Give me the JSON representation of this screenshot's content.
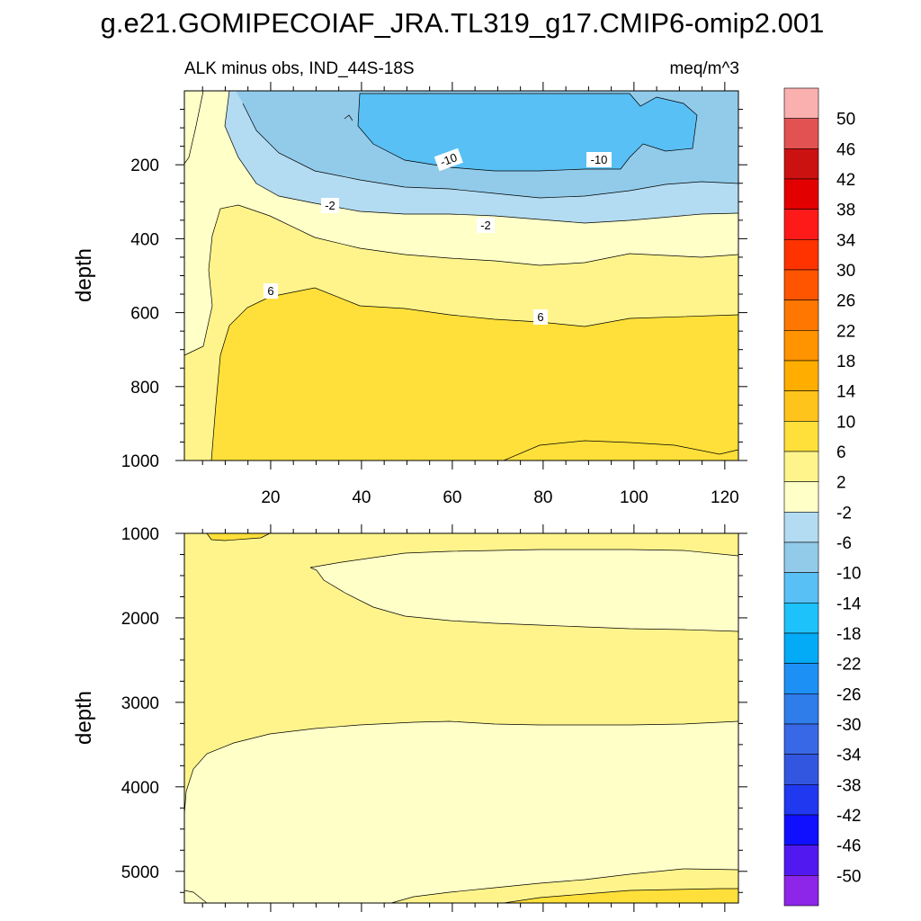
{
  "title": "g.e21.GOMIPECOIAF_JRA.TL319_g17.CMIP6-omip2.001",
  "chart_data": [
    {
      "type": "contour",
      "panel": "upper",
      "left_label": "ALK minus obs, IND_44S-18S",
      "right_label": "meq/m^3",
      "xlabel": "",
      "ylabel": "depth",
      "xlim": [
        1,
        123
      ],
      "ylim": [
        0,
        1000
      ],
      "y_reversed": true,
      "x_ticks": [
        "20",
        "40",
        "60",
        "80",
        "100",
        "120"
      ],
      "y_ticks": [
        "200",
        "400",
        "600",
        "800",
        "1000"
      ],
      "contour_labels": [
        "-10",
        "-10",
        "-2",
        "-2",
        "6",
        "6"
      ]
    },
    {
      "type": "contour",
      "panel": "lower",
      "xlabel": "",
      "ylabel": "depth",
      "xlim": [
        1,
        123
      ],
      "ylim": [
        1000,
        5375
      ],
      "y_reversed": true,
      "y_ticks": [
        "1000",
        "2000",
        "3000",
        "4000",
        "5000"
      ]
    }
  ],
  "colorbar": {
    "levels": [
      "50",
      "46",
      "42",
      "38",
      "34",
      "30",
      "26",
      "22",
      "18",
      "14",
      "10",
      "6",
      "2",
      "-2",
      "-6",
      "-10",
      "-14",
      "-18",
      "-22",
      "-26",
      "-30",
      "-34",
      "-38",
      "-42",
      "-46",
      "-50"
    ],
    "colors": [
      "#fbb0b0",
      "#e25252",
      "#cc1111",
      "#e20000",
      "#ff1a1a",
      "#ff3300",
      "#ff5500",
      "#ff7700",
      "#ff9300",
      "#ffae00",
      "#ffc41c",
      "#ffe03a",
      "#fff48c",
      "#ffffc8",
      "#b3dcf2",
      "#92cbea",
      "#58c0f5",
      "#1ec2fa",
      "#03aaf5",
      "#1d90f5",
      "#2f7ceb",
      "#3868e6",
      "#3356e0",
      "#2038f0",
      "#1010ff",
      "#5218f0",
      "#8d26e8"
    ]
  }
}
